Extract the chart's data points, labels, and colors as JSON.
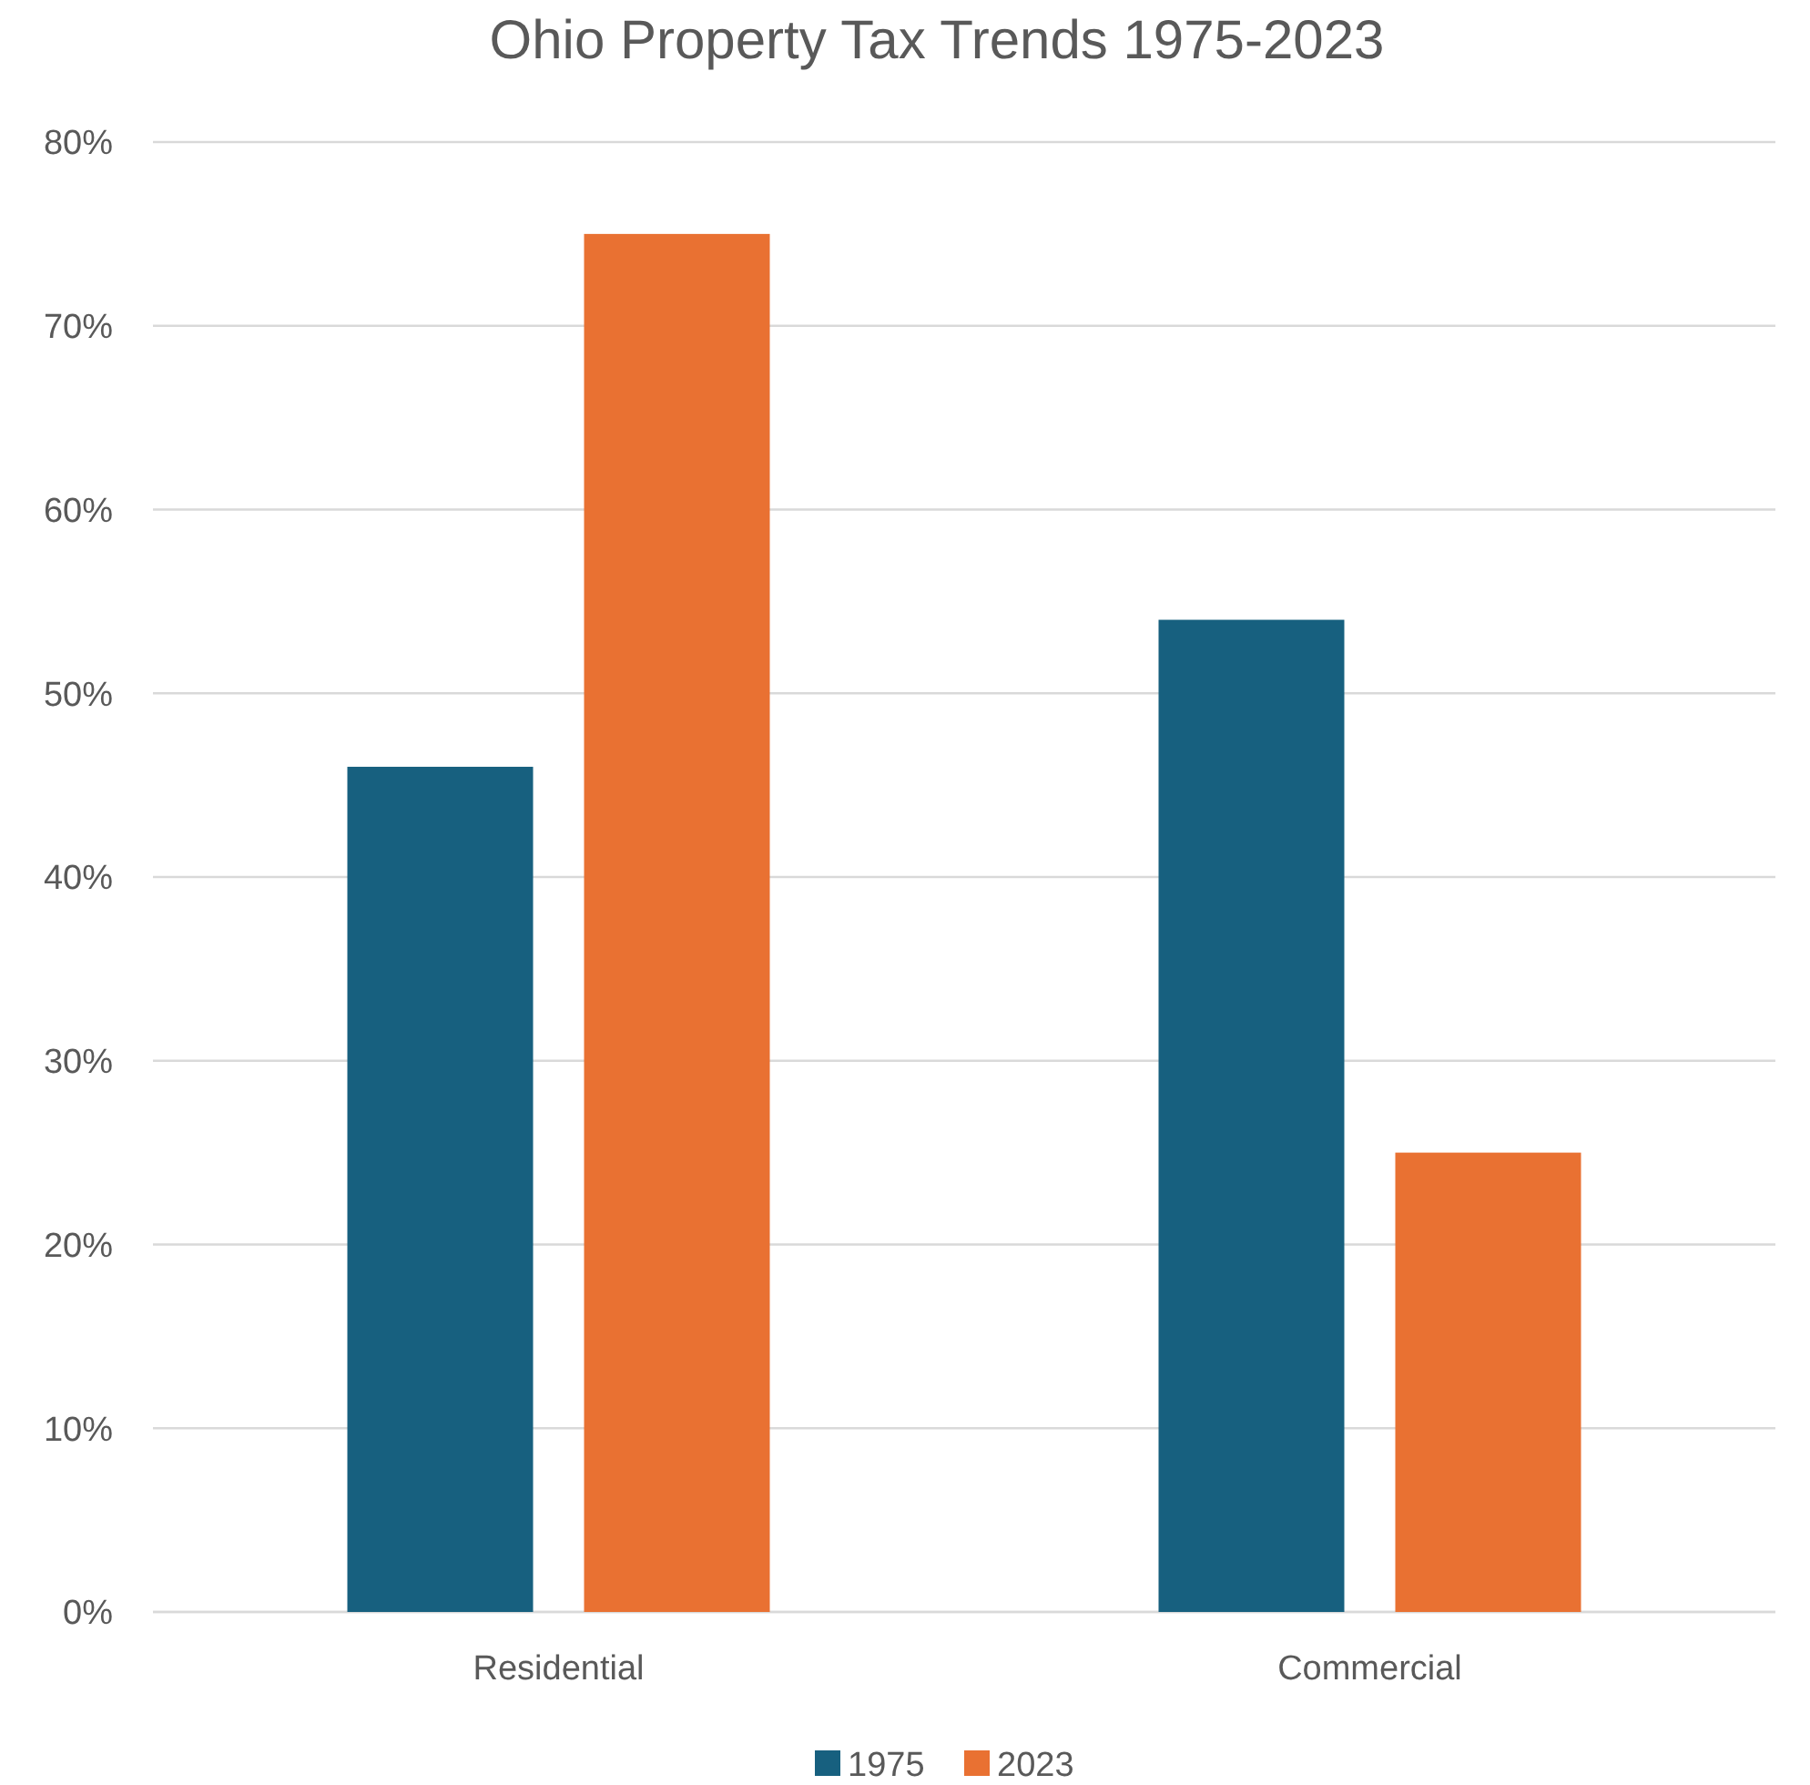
{
  "chart_data": {
    "type": "bar",
    "title": "Ohio Property Tax Trends 1975-2023",
    "categories": [
      "Residential",
      "Commercial"
    ],
    "series": [
      {
        "name": "1975",
        "color": "#17607f",
        "values": [
          46,
          54
        ]
      },
      {
        "name": "2023",
        "color": "#e97132",
        "values": [
          75,
          25
        ]
      }
    ],
    "ylim": [
      0,
      80
    ],
    "yticks": [
      {
        "value": 0,
        "label": "0%"
      },
      {
        "value": 10,
        "label": "10%"
      },
      {
        "value": 20,
        "label": "20%"
      },
      {
        "value": 30,
        "label": "30%"
      },
      {
        "value": 40,
        "label": "40%"
      },
      {
        "value": 50,
        "label": "50%"
      },
      {
        "value": 60,
        "label": "60%"
      },
      {
        "value": 70,
        "label": "70%"
      },
      {
        "value": 80,
        "label": "80%"
      }
    ],
    "grid": "y",
    "legend": "bottom"
  }
}
